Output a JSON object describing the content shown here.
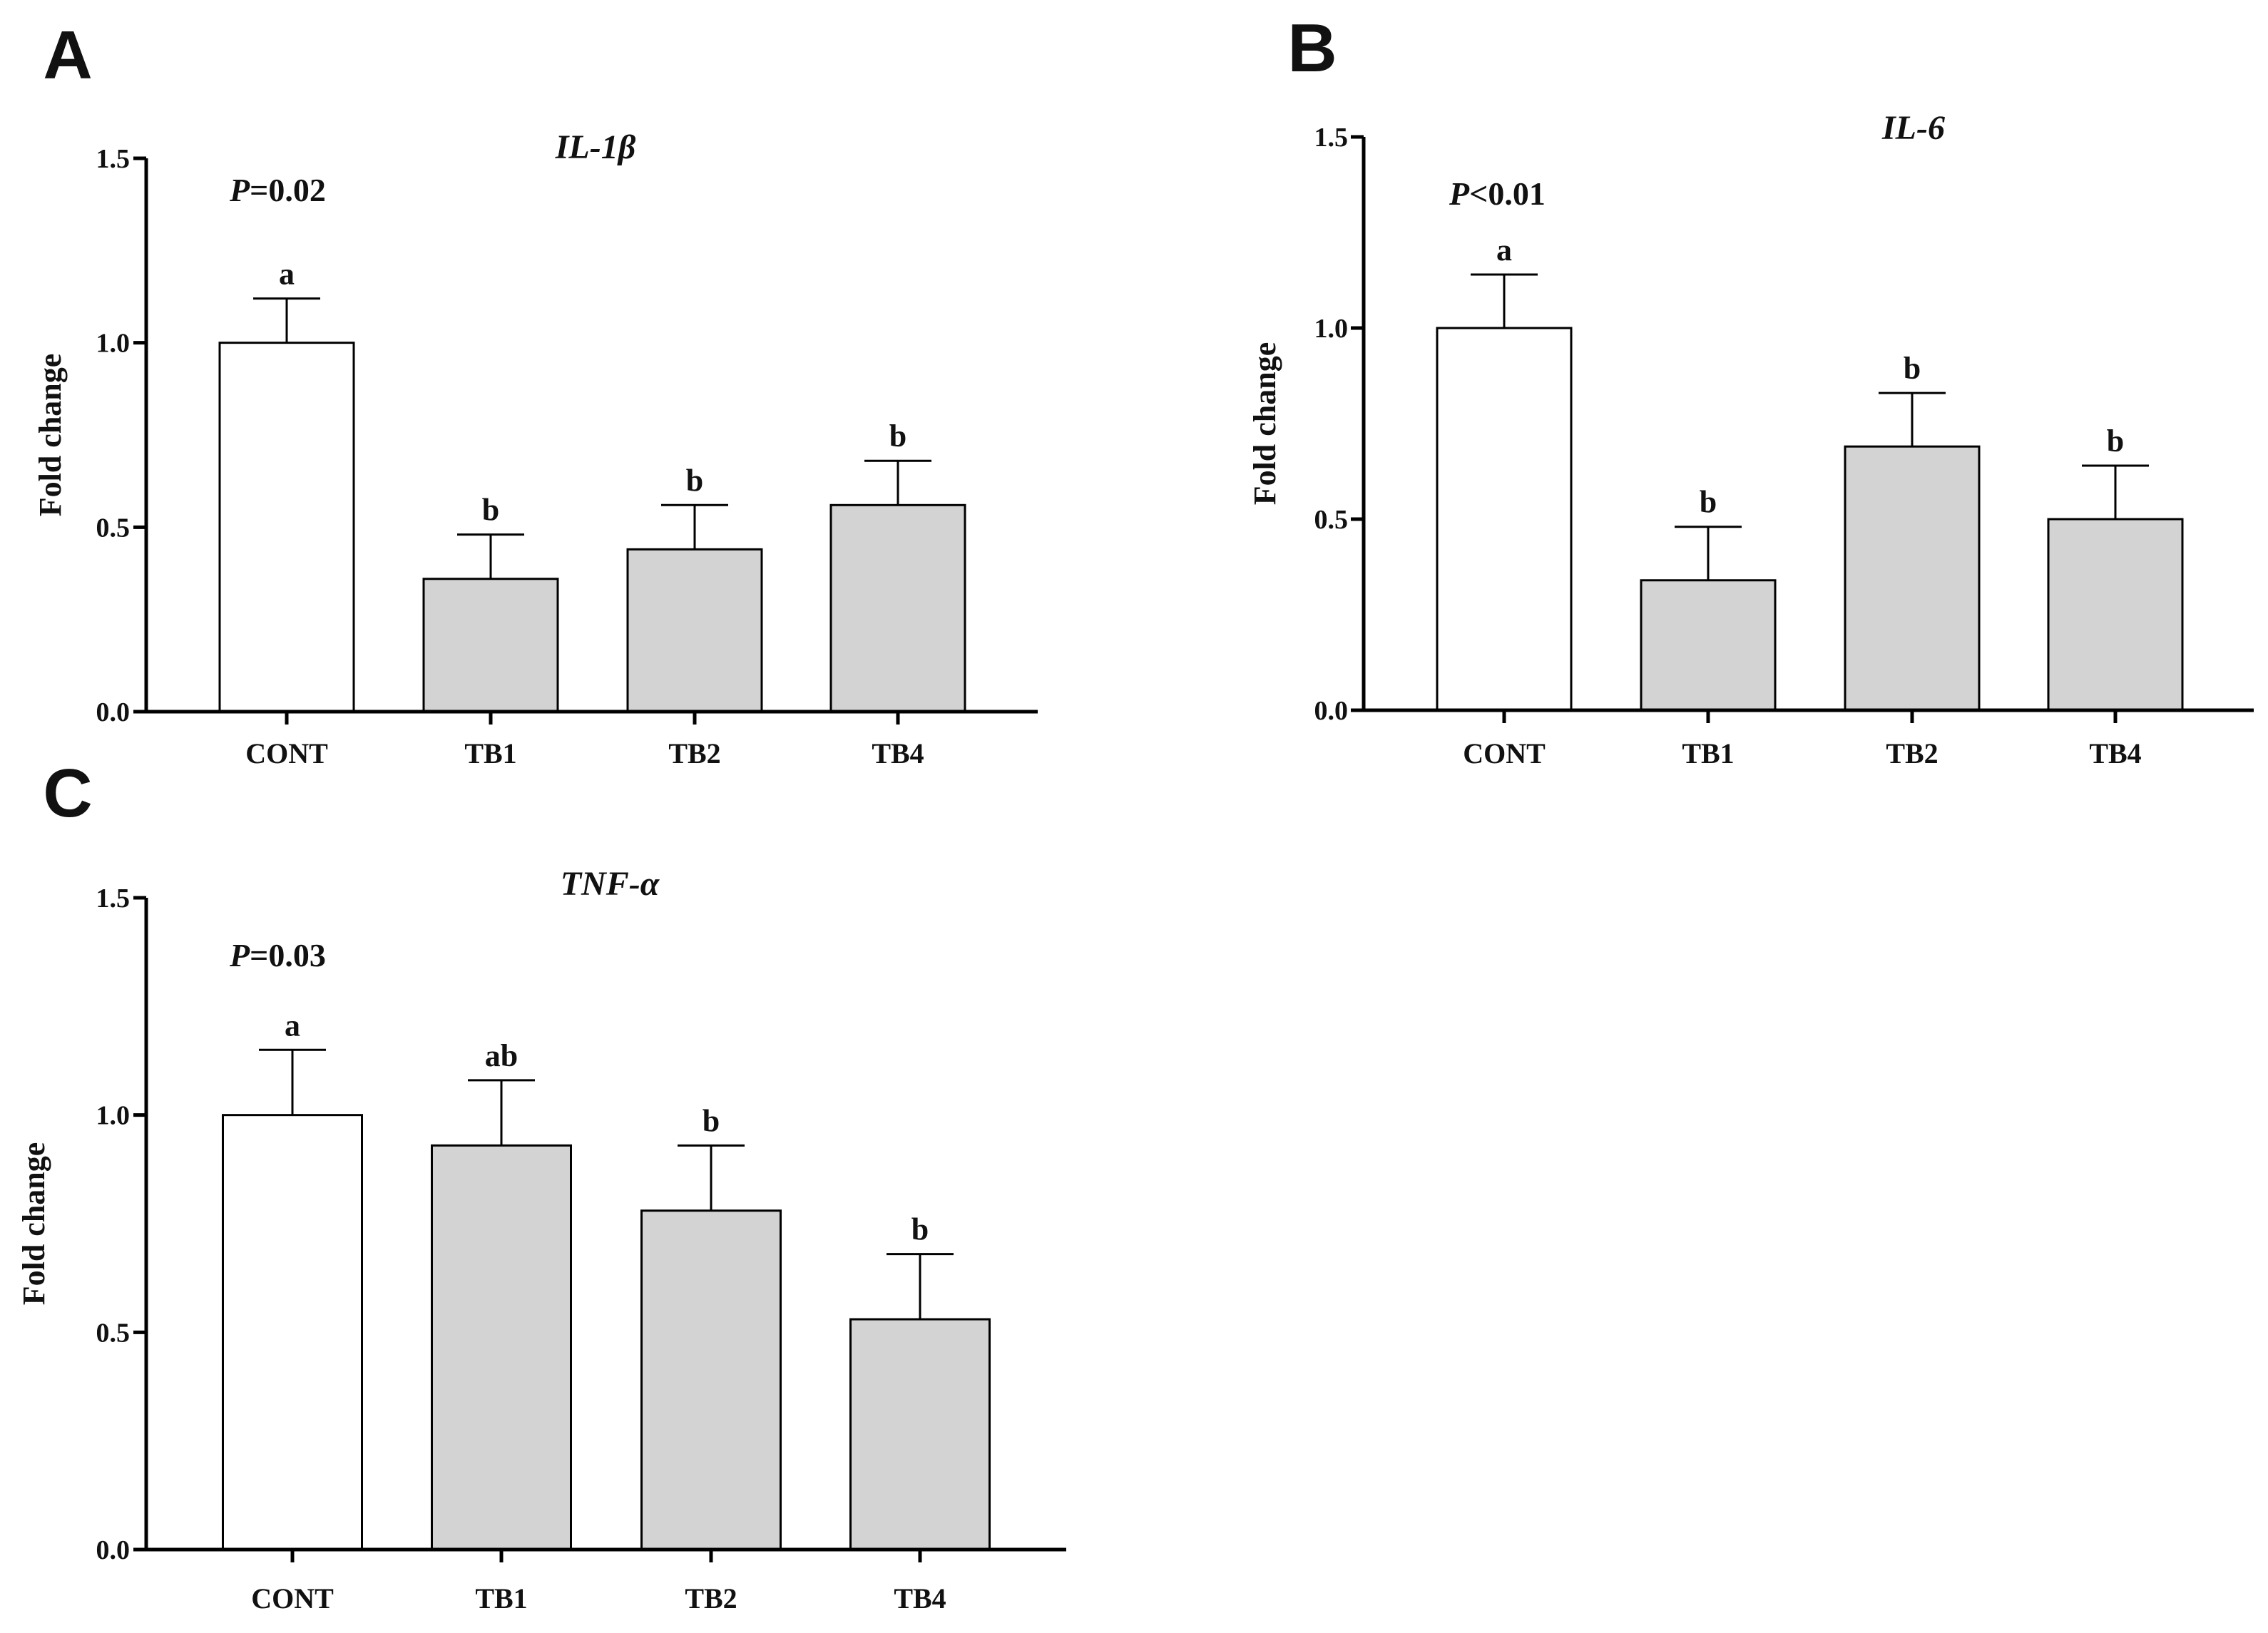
{
  "figure": {
    "background": "#ffffff",
    "axis_color": "#000000",
    "control_fill": "#ffffff",
    "treatment_fill": "#d3d3d3"
  },
  "chart_data": [
    {
      "panel": "A",
      "type": "bar",
      "title": "IL-1β",
      "p_label": "P",
      "p_value": "=0.02",
      "ylabel": "Fold change",
      "xlabel": "",
      "ylim": [
        0,
        1.5
      ],
      "yticks": [
        "0.0",
        "0.5",
        "1.0",
        "1.5"
      ],
      "categories": [
        "CONT",
        "TB1",
        "TB2",
        "TB4"
      ],
      "values": [
        1.0,
        0.36,
        0.44,
        0.56
      ],
      "errors": [
        0.12,
        0.12,
        0.12,
        0.12
      ],
      "letters": [
        "a",
        "b",
        "b",
        "b"
      ]
    },
    {
      "panel": "B",
      "type": "bar",
      "title": "IL-6",
      "p_label": "P",
      "p_value": "<0.01",
      "ylabel": "Fold change",
      "xlabel": "",
      "ylim": [
        0,
        1.5
      ],
      "yticks": [
        "0.0",
        "0.5",
        "1.0",
        "1.5"
      ],
      "categories": [
        "CONT",
        "TB1",
        "TB2",
        "TB4"
      ],
      "values": [
        1.0,
        0.34,
        0.69,
        0.5
      ],
      "errors": [
        0.14,
        0.14,
        0.14,
        0.14
      ],
      "letters": [
        "a",
        "b",
        "b",
        "b"
      ]
    },
    {
      "panel": "C",
      "type": "bar",
      "title": "TNF-α",
      "p_label": "P",
      "p_value": "=0.03",
      "ylabel": "Fold change",
      "xlabel": "",
      "ylim": [
        0,
        1.5
      ],
      "yticks": [
        "0.0",
        "0.5",
        "1.0",
        "1.5"
      ],
      "categories": [
        "CONT",
        "TB1",
        "TB2",
        "TB4"
      ],
      "values": [
        1.0,
        0.93,
        0.78,
        0.53
      ],
      "errors": [
        0.15,
        0.15,
        0.15,
        0.15
      ],
      "letters": [
        "a",
        "ab",
        "b",
        "b"
      ]
    }
  ]
}
